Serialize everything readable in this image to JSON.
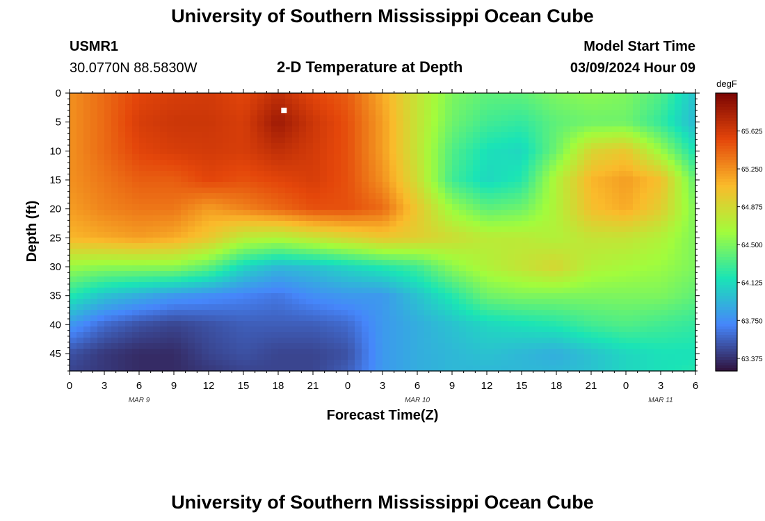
{
  "page": {
    "title_top": "University of Southern Mississippi Ocean Cube",
    "title_bottom": "University of Southern Mississippi Ocean Cube",
    "station_id": "USMR1",
    "station_coords": "30.0770N  88.5830W",
    "plot_title": "2-D Temperature at Depth",
    "model_label": "Model Start Time",
    "model_time": "03/09/2024 Hour 09"
  },
  "colors": {
    "scale": [
      "#30123b",
      "#4686fb",
      "#1ae4b6",
      "#a2fc3c",
      "#fabb2b",
      "#e4460a",
      "#7a0403"
    ],
    "marker": "#ffffff"
  },
  "chart_data": {
    "type": "heatmap",
    "title": "2-D Temperature at Depth",
    "xlabel": "Forecast Time(Z)",
    "ylabel": "Depth (ft)",
    "x_tick_labels": [
      "0",
      "3",
      "6",
      "9",
      "12",
      "15",
      "18",
      "21",
      "0",
      "3",
      "6",
      "9",
      "12",
      "15",
      "18",
      "21",
      "0",
      "3",
      "6"
    ],
    "date_labels": [
      {
        "label": "MAR 9",
        "hour_index": 6
      },
      {
        "label": "MAR 10",
        "hour_index": 30
      },
      {
        "label": "MAR 11",
        "hour_index": 51
      }
    ],
    "x_range_hours": [
      0,
      54
    ],
    "y_ticks": [
      0,
      5,
      10,
      15,
      20,
      25,
      30,
      35,
      40,
      45
    ],
    "y_range_ft": [
      0,
      48
    ],
    "colorbar": {
      "unit": "degF",
      "range": [
        63.25,
        66.0
      ],
      "tick_values": [
        63.375,
        63.75,
        64.125,
        64.5,
        64.875,
        65.25,
        65.625
      ],
      "tick_labels": [
        "63.375",
        "63.750",
        "64.125",
        "64.500",
        "64.875",
        "65.250",
        "65.625"
      ]
    },
    "marker": {
      "hour": 18.5,
      "depth_ft": 3
    },
    "depth_levels_ft": [
      0,
      5,
      10,
      15,
      20,
      25,
      30,
      35,
      40,
      45,
      48
    ],
    "time_hours": [
      0,
      3,
      6,
      9,
      12,
      15,
      18,
      21,
      24,
      27,
      30,
      33,
      36,
      39,
      42,
      45,
      48,
      51,
      54
    ],
    "temperature_degF": [
      [
        65.25,
        65.4,
        65.55,
        65.6,
        65.62,
        65.55,
        65.7,
        65.55,
        65.45,
        65.15,
        64.8,
        64.5,
        64.4,
        64.4,
        64.5,
        64.55,
        64.5,
        64.35,
        64.0
      ],
      [
        65.25,
        65.4,
        65.6,
        65.65,
        65.65,
        65.6,
        65.85,
        65.65,
        65.5,
        65.2,
        64.8,
        64.45,
        64.3,
        64.25,
        64.4,
        64.45,
        64.45,
        64.25,
        63.95
      ],
      [
        65.25,
        65.4,
        65.55,
        65.6,
        65.62,
        65.6,
        65.7,
        65.62,
        65.5,
        65.2,
        64.8,
        64.35,
        64.15,
        64.1,
        64.45,
        64.9,
        65.0,
        64.6,
        64.15
      ],
      [
        65.25,
        65.35,
        65.45,
        65.45,
        65.55,
        65.5,
        65.55,
        65.6,
        65.5,
        65.25,
        64.85,
        64.3,
        64.1,
        64.2,
        64.7,
        65.1,
        65.2,
        65.05,
        64.4
      ],
      [
        65.2,
        65.3,
        65.35,
        65.35,
        65.2,
        65.3,
        65.4,
        65.5,
        65.5,
        65.4,
        65.0,
        64.6,
        64.4,
        64.45,
        64.7,
        65.05,
        65.15,
        64.95,
        64.5
      ],
      [
        65.1,
        65.15,
        65.2,
        65.15,
        65.0,
        64.75,
        64.7,
        64.8,
        64.9,
        65.0,
        64.95,
        64.85,
        64.75,
        64.75,
        64.7,
        64.8,
        64.8,
        64.7,
        64.5
      ],
      [
        64.6,
        64.55,
        64.55,
        64.55,
        64.4,
        64.1,
        63.95,
        64.0,
        64.1,
        64.2,
        64.3,
        64.55,
        64.7,
        64.8,
        64.9,
        64.7,
        64.65,
        64.6,
        64.5
      ],
      [
        64.2,
        64.0,
        63.9,
        63.8,
        63.75,
        63.7,
        63.65,
        63.75,
        63.8,
        63.8,
        64.0,
        64.2,
        64.45,
        64.5,
        64.5,
        64.5,
        64.5,
        64.5,
        64.4
      ],
      [
        63.8,
        63.6,
        63.5,
        63.45,
        63.5,
        63.55,
        63.55,
        63.55,
        63.6,
        63.8,
        63.9,
        64.0,
        64.1,
        64.15,
        64.2,
        64.3,
        64.35,
        64.3,
        64.25
      ],
      [
        63.5,
        63.4,
        63.35,
        63.35,
        63.45,
        63.5,
        63.45,
        63.45,
        63.5,
        63.8,
        63.9,
        63.95,
        64.0,
        63.95,
        63.9,
        64.0,
        64.1,
        64.15,
        64.15
      ],
      [
        63.45,
        63.4,
        63.35,
        63.35,
        63.4,
        63.45,
        63.45,
        63.45,
        63.55,
        63.8,
        63.9,
        63.95,
        63.95,
        63.95,
        63.95,
        64.0,
        64.1,
        64.15,
        64.2
      ]
    ]
  }
}
